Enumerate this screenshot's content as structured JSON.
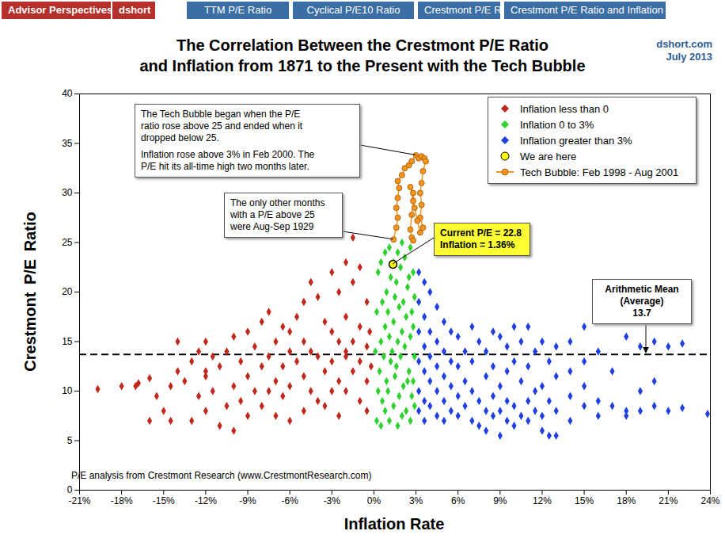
{
  "chart_data": {
    "type": "scatter",
    "header": {
      "brand": [
        "Advisor Perspectives",
        "dshort"
      ],
      "tabs": [
        "TTM P/E Ratio",
        "Cyclical P/E10 Ratio",
        "Crestmont P/E Ratio",
        "Crestmont P/E Ratio and Inflation"
      ]
    },
    "title": [
      "The Correlation Between the Crestmont P/E Ratio",
      "and Inflation from 1871 to the Present with the Tech Bubble"
    ],
    "site": "dshort.com",
    "date": "July 2013",
    "source": "P/E analysis from Crestmont Research (www.CrestmontResearch.com)",
    "x_label": "Inflation Rate",
    "y_label": "Crestmont P/E Ratio",
    "xlim": [
      -21,
      24
    ],
    "ylim": [
      0,
      40
    ],
    "xticks": [
      {
        "value": -21,
        "label": "-21%"
      },
      {
        "value": -18,
        "label": "-18%"
      },
      {
        "value": -15,
        "label": "-15%"
      },
      {
        "value": -12,
        "label": "-12%"
      },
      {
        "value": -9,
        "label": "-9%"
      },
      {
        "value": -6,
        "label": "-6%"
      },
      {
        "value": -3,
        "label": "-3%"
      },
      {
        "value": 0,
        "label": "0%"
      },
      {
        "value": 3,
        "label": "3%"
      },
      {
        "value": 6,
        "label": "6%"
      },
      {
        "value": 9,
        "label": "9%"
      },
      {
        "value": 12,
        "label": "12%"
      },
      {
        "value": 15,
        "label": "15%"
      },
      {
        "value": 18,
        "label": "18%"
      },
      {
        "value": 21,
        "label": "21%"
      },
      {
        "value": 24,
        "label": "24%"
      }
    ],
    "yticks": [
      0,
      5,
      10,
      15,
      20,
      25,
      30,
      35,
      40
    ],
    "grid": false,
    "legend": "top-right",
    "series": [
      {
        "name": "Inflation less than 0",
        "color": "#c0281c",
        "marker": "diamond",
        "x": [
          -19.7,
          -18,
          -17,
          -16.8,
          -16,
          -16,
          -15.5,
          -15,
          -14.5,
          -14.5,
          -14,
          -14,
          -13.5,
          -13,
          -13,
          -12.5,
          -12.5,
          -12,
          -12,
          -12,
          -12,
          -11.5,
          -11.5,
          -11,
          -11,
          -10.5,
          -10.5,
          -10,
          -10,
          -10,
          -9.5,
          -9.5,
          -9,
          -9,
          -9,
          -8.5,
          -8.5,
          -8,
          -8,
          -8,
          -7.5,
          -7.5,
          -7.5,
          -7,
          -7,
          -7,
          -6.5,
          -6.5,
          -6.5,
          -6,
          -6,
          -6,
          -6,
          -5.5,
          -5.5,
          -5,
          -5,
          -5,
          -5,
          -4.5,
          -4.5,
          -4.5,
          -4,
          -4,
          -4,
          -3.5,
          -3.5,
          -3.5,
          -3,
          -3,
          -3,
          -3,
          -2.5,
          -2.5,
          -2.5,
          -2.5,
          -2,
          -2,
          -2,
          -2,
          -2,
          -1.5,
          -1.5,
          -1.5,
          -1.5,
          -1,
          -1,
          -1,
          -1,
          -0.5,
          -0.5,
          -0.5,
          -0.5,
          -0.3,
          -0.2
        ],
        "values": [
          10.2,
          10.5,
          10.5,
          10.8,
          11.3,
          7,
          9.5,
          8,
          7,
          10.5,
          15,
          12,
          11,
          7,
          13,
          9.5,
          14,
          15,
          11.5,
          8,
          12,
          13.5,
          10,
          6.5,
          12.5,
          14,
          8.5,
          15.5,
          10.5,
          6,
          13,
          9,
          16,
          11.5,
          7.5,
          14.5,
          10,
          17,
          12.5,
          8.5,
          18,
          13.5,
          10,
          15,
          11,
          7.5,
          16.5,
          12.5,
          9.5,
          14,
          10.5,
          7,
          16,
          17.5,
          13,
          19,
          15,
          11.5,
          8,
          21,
          14,
          10,
          19.5,
          13.5,
          9,
          17,
          12,
          8.5,
          22,
          16,
          13,
          10,
          20,
          15,
          11,
          7.5,
          23,
          17.5,
          13.5,
          10,
          14,
          25.5,
          21,
          15,
          12,
          22.5,
          16.5,
          13,
          9,
          19,
          14.5,
          11,
          8,
          16,
          12.5
        ]
      },
      {
        "name": "Inflation 0 to 3%",
        "color": "#2ed12e",
        "marker": "diamond",
        "x": [
          0.2,
          0.3,
          0.1,
          0.2,
          0.3,
          0.5,
          0.6,
          0.4,
          0.5,
          0.6,
          0.5,
          0.8,
          0.9,
          0.7,
          0.8,
          0.9,
          0.8,
          1.1,
          1.0,
          1.2,
          1.1,
          1.0,
          1.2,
          1.1,
          1.4,
          1.5,
          1.3,
          1.4,
          1.5,
          1.4,
          1.7,
          1.8,
          1.6,
          1.7,
          1.8,
          1.6,
          1.7,
          2.0,
          2.1,
          1.9,
          2.0,
          2.1,
          1.9,
          2.0,
          2.3,
          2.4,
          2.2,
          2.3,
          2.4,
          2.2,
          2.6,
          2.7,
          2.5,
          2.6,
          2.7,
          2.5,
          2.6,
          2.9,
          2.8,
          2.9,
          2.8,
          2.9,
          2.8
        ],
        "values": [
          7,
          10,
          14,
          18,
          22,
          6.5,
          9,
          12,
          15,
          19,
          23,
          8,
          11,
          13.5,
          16.5,
          20,
          24,
          7,
          10,
          13,
          15.5,
          18,
          21.5,
          24.5,
          8.5,
          11.5,
          14,
          17,
          19.5,
          23,
          6.5,
          9.5,
          12.5,
          15,
          18.5,
          21,
          24,
          7.5,
          10.5,
          13.5,
          16,
          19,
          22.5,
          25,
          8,
          11,
          14.5,
          17.5,
          20.5,
          23.5,
          7,
          9.5,
          12,
          15.5,
          18,
          21.5,
          24.5,
          8.5,
          11,
          13.5,
          16.5,
          19.5,
          22
        ]
      },
      {
        "name": "Inflation greater than 3%",
        "color": "#1f3fe0",
        "marker": "diamond",
        "x": [
          3.2,
          3.2,
          3.2,
          3.2,
          3.2,
          3.2,
          3.6,
          3.6,
          3.6,
          3.6,
          3.6,
          3.6,
          4.0,
          4.0,
          4.0,
          4.0,
          4.0,
          4.5,
          4.5,
          4.5,
          4.5,
          4.5,
          5.0,
          5.0,
          5.0,
          5.0,
          5.0,
          5.5,
          5.5,
          5.5,
          5.5,
          6.0,
          6.0,
          6.0,
          6.0,
          6.5,
          6.5,
          6.5,
          7,
          7,
          7,
          7,
          7.5,
          7.5,
          7.5,
          8,
          8,
          8,
          8,
          8.5,
          8.5,
          8.5,
          8.5,
          9,
          9,
          9,
          9,
          9.5,
          9.5,
          9.5,
          9.5,
          10,
          10,
          10,
          10,
          10.5,
          10.5,
          10.5,
          11,
          11,
          11,
          11,
          11.5,
          11.5,
          11.5,
          12,
          12,
          12,
          12,
          12.5,
          12.5,
          12.5,
          13,
          13,
          13,
          13,
          14,
          14,
          14,
          14,
          15,
          15,
          15,
          15,
          16,
          16,
          16,
          17,
          17,
          18,
          18,
          18,
          19,
          19,
          19,
          20,
          20,
          20,
          21,
          21,
          22,
          22,
          23.8
        ],
        "values": [
          22,
          19,
          16,
          13,
          10,
          8,
          21,
          17.5,
          14.5,
          12,
          9,
          7,
          20,
          16,
          13.5,
          11,
          8.5,
          18.5,
          15,
          12.5,
          10,
          7.5,
          17,
          14,
          11.5,
          9,
          7,
          16,
          13,
          10.5,
          8,
          15.5,
          12.5,
          9.5,
          7.5,
          14,
          11,
          8.5,
          16.5,
          13,
          10,
          7,
          15,
          9,
          6.5,
          14,
          11.5,
          8,
          6,
          16,
          12.5,
          9.5,
          7.5,
          15.5,
          10.5,
          8,
          5.5,
          14.5,
          12,
          9,
          7,
          16.5,
          13,
          8.5,
          6.5,
          15,
          11,
          7.5,
          16.5,
          12.5,
          9,
          7,
          14,
          10,
          8,
          15,
          10.5,
          7.5,
          6,
          13,
          9,
          5.5,
          14.5,
          11.5,
          8,
          5.5,
          15,
          12,
          9.5,
          7,
          16.5,
          13,
          10.5,
          8.5,
          14,
          9,
          7.5,
          12,
          8.5,
          15.5,
          8,
          7.5,
          14.5,
          10,
          8,
          15,
          11,
          8.5,
          14.5,
          8,
          14.8,
          8.3,
          7.7
        ]
      },
      {
        "name": "We are here",
        "color": "#ffff00",
        "marker": "circle",
        "x": [
          1.36
        ],
        "values": [
          22.8
        ]
      },
      {
        "name": "Tech Bubble: Feb 1998 - Aug 2001",
        "color": "#f7941d",
        "marker": "circle",
        "type": "line",
        "line_style": "solid",
        "x": [
          1.4,
          1.6,
          1.7,
          1.6,
          1.7,
          1.8,
          1.7,
          2.0,
          2.2,
          2.5,
          2.7,
          3.0,
          3.2,
          3.4,
          3.6,
          3.7,
          3.5,
          3.4,
          3.3,
          3.4,
          3.3,
          3.5,
          3.3,
          3.1,
          2.9,
          2.8,
          2.6,
          2.8,
          2.7,
          2.6,
          2.7,
          2.8
        ],
        "values": [
          25.3,
          26.5,
          27.5,
          28.5,
          29.5,
          30.5,
          31.2,
          31.8,
          32.5,
          32.8,
          33.2,
          33.8,
          33.5,
          33.7,
          33.5,
          33.2,
          32.2,
          31,
          30,
          28.8,
          27.5,
          26.5,
          26,
          27.2,
          28.5,
          30,
          30.6,
          29.2,
          27.8,
          26.3,
          25.5,
          25.2
        ]
      }
    ],
    "mean": {
      "value": 13.7,
      "label": [
        "Arithmetic Mean",
        "(Average)"
      ]
    },
    "annotations": [
      {
        "paragraphs": [
          [
            "The Tech Bubble began when the P/E",
            "ratio rose above 25 and ended when it",
            "dropped below 25."
          ],
          [
            "Inflation rose above 3% in Feb 2000.  The",
            "P/E hit its all-time high two months later."
          ]
        ]
      },
      {
        "paragraphs": [
          [
            "The only other months",
            "with a P/E above 25",
            "were Aug-Sep 1929"
          ]
        ]
      },
      {
        "paragraphs": [
          [
            "Current P/E = 22.8",
            "Inflation = 1.36%"
          ]
        ]
      }
    ]
  }
}
